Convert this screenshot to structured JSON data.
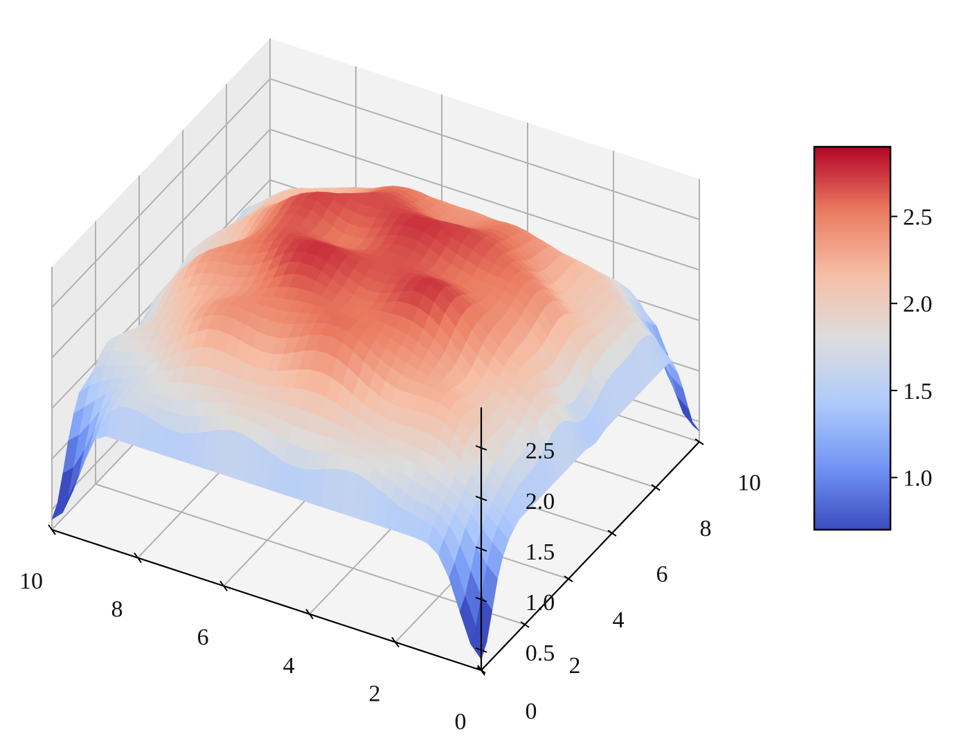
{
  "chart_data": {
    "type": "surface3d",
    "title": "",
    "xlabel": "",
    "ylabel": "",
    "zlabel": "",
    "colormap": "coolwarm",
    "colormap_stops": [
      "#3b4cc0",
      "#7396f5",
      "#b0cbfc",
      "#dcdddd",
      "#f6bfa6",
      "#ea7b60",
      "#b40426"
    ],
    "xlim": [
      0,
      10
    ],
    "ylim": [
      0,
      10
    ],
    "zlim": [
      0.3,
      2.9
    ],
    "x_ticks": [
      0,
      2,
      4,
      6,
      8,
      10
    ],
    "y_ticks": [
      0,
      2,
      4,
      6,
      8,
      10
    ],
    "z_ticks": [
      0.5,
      1.0,
      1.5,
      2.0,
      2.5
    ],
    "x_tick_labels": [
      "0",
      "2",
      "4",
      "6",
      "8",
      "10"
    ],
    "y_tick_labels": [
      "0",
      "2",
      "4",
      "6",
      "8",
      "10"
    ],
    "z_tick_labels": [
      "0.5",
      "1.0",
      "1.5",
      "2.0",
      "2.5"
    ],
    "grid": true,
    "surface": {
      "grid_steps": 40,
      "corner_min": 0.35,
      "plateau_max": 2.8,
      "edge_value": 1.45,
      "description_of_shape": "plateau"
    },
    "colorbar": {
      "range": [
        0.7,
        2.9
      ],
      "ticks": [
        1.0,
        1.5,
        2.0,
        2.5
      ],
      "tick_labels": [
        "1.0",
        "1.5",
        "2.0",
        "2.5"
      ]
    }
  }
}
